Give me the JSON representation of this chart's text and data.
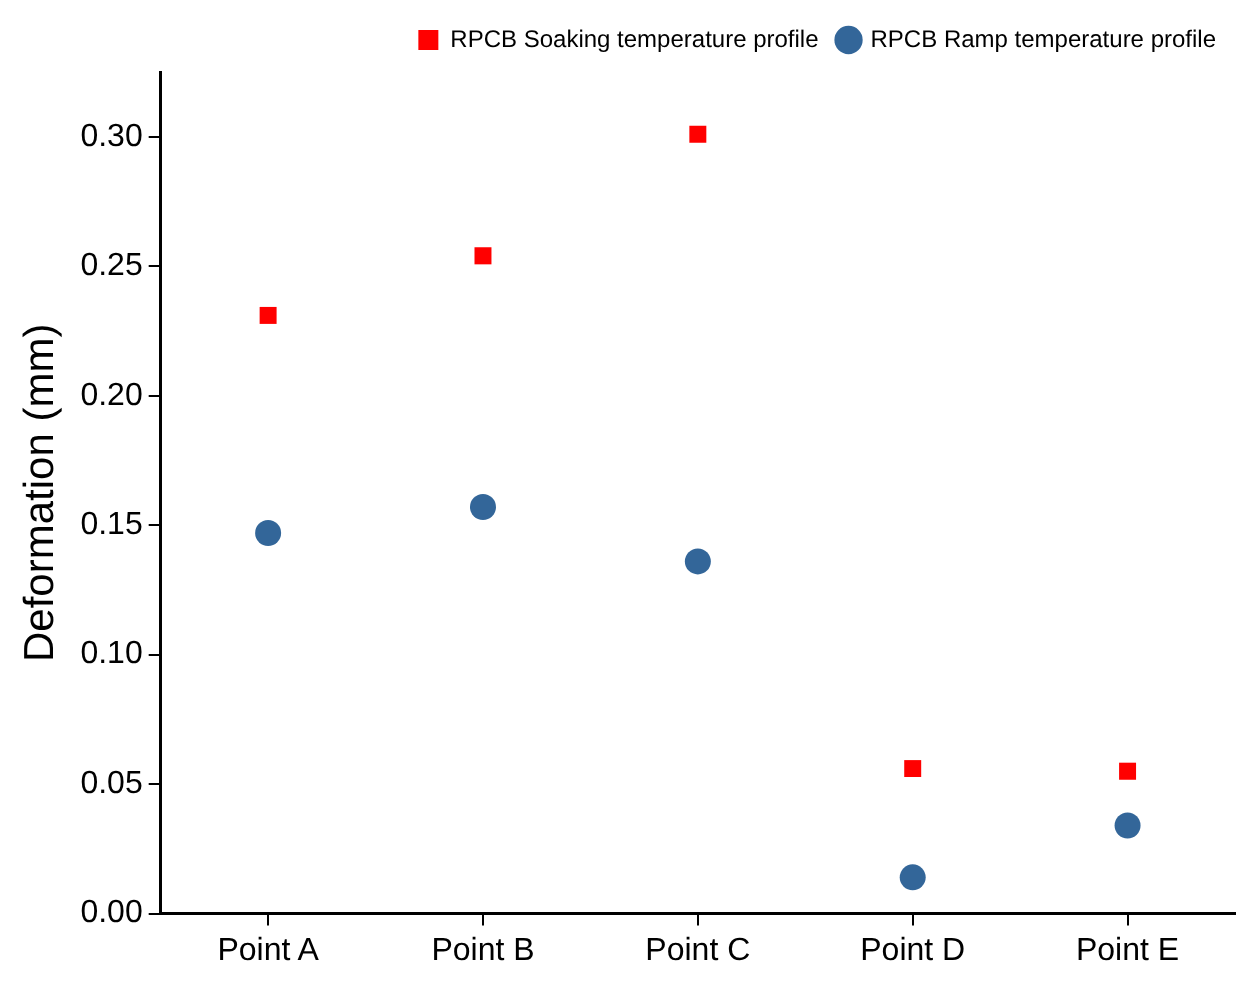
{
  "chart_data": {
    "type": "scatter",
    "ylabel": "Deformation (mm)",
    "categories": [
      "Point A",
      "Point B",
      "Point C",
      "Point D",
      "Point E"
    ],
    "series": [
      {
        "name": "RPCB Soaking temperature profile",
        "color": "#ff0000",
        "marker": "square",
        "values": [
          0.231,
          0.254,
          0.301,
          0.056,
          0.055
        ]
      },
      {
        "name": "RPCB Ramp temperature profile",
        "color": "#336699",
        "marker": "circle",
        "values": [
          0.147,
          0.157,
          0.136,
          0.014,
          0.034
        ]
      }
    ],
    "ylim": [
      0,
      0.325
    ],
    "yticks": [
      {
        "value": 0,
        "label": "0.00"
      },
      {
        "value": 0.05,
        "label": "0.05"
      },
      {
        "value": 0.1,
        "label": "0.10"
      },
      {
        "value": 0.15,
        "label": "0.15"
      },
      {
        "value": 0.2,
        "label": "0.20"
      },
      {
        "value": 0.25,
        "label": "0.25"
      },
      {
        "value": 0.3,
        "label": "0.30"
      }
    ],
    "grid": false,
    "legend": "top right"
  }
}
